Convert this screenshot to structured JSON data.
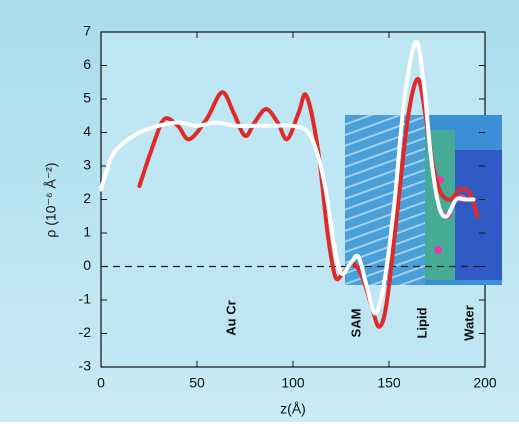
{
  "chart_data": {
    "type": "line",
    "y_label": "ρ (10⁻⁶ Å⁻²)",
    "x_label": "z(Å)",
    "annotations": [
      "Au Cr",
      "SAM",
      "Lipid",
      "Water"
    ],
    "xlim": [
      0,
      200
    ],
    "xticks": [
      0,
      50,
      100,
      150,
      200
    ],
    "ylim": [
      -3,
      7
    ],
    "yticks": [
      -3,
      -2,
      -1,
      0,
      1,
      2,
      3,
      4,
      5,
      6,
      7
    ],
    "hline": 0,
    "series": [
      {
        "color": "#e02a28",
        "x": [
          20,
          27,
          33,
          40,
          46,
          55,
          63,
          69,
          75,
          80,
          86,
          92,
          97,
          103,
          107,
          113,
          118,
          122,
          126,
          131,
          136,
          141,
          145,
          149,
          155,
          160,
          165,
          169,
          173,
          177,
          182,
          187,
          192,
          196
        ],
        "values": [
          2.4,
          3.6,
          4.4,
          4.2,
          3.8,
          4.4,
          5.2,
          4.6,
          3.9,
          4.3,
          4.7,
          4.3,
          3.8,
          4.6,
          5.1,
          3.5,
          1.0,
          -0.3,
          -0.2,
          0.1,
          -0.3,
          -1.2,
          -1.8,
          -1.0,
          2.0,
          4.5,
          5.6,
          4.5,
          3.0,
          2.2,
          2.0,
          2.3,
          2.2,
          1.5
        ]
      },
      {
        "color": "#ffffff",
        "x": [
          0,
          5,
          10,
          20,
          30,
          40,
          50,
          60,
          70,
          80,
          90,
          100,
          108,
          113,
          117,
          121,
          125,
          130,
          134,
          138,
          143,
          148,
          153,
          158,
          164,
          168,
          172,
          176,
          180,
          185,
          190,
          194
        ],
        "values": [
          2.3,
          3.2,
          3.6,
          4.0,
          4.2,
          4.3,
          4.2,
          4.3,
          4.2,
          4.2,
          4.2,
          4.2,
          4.0,
          3.3,
          2.3,
          0.8,
          -0.2,
          0.1,
          0.3,
          -0.5,
          -1.4,
          -0.3,
          2.0,
          5.0,
          6.7,
          5.5,
          3.2,
          1.8,
          1.5,
          2.0,
          2.0,
          2.0
        ]
      }
    ]
  }
}
